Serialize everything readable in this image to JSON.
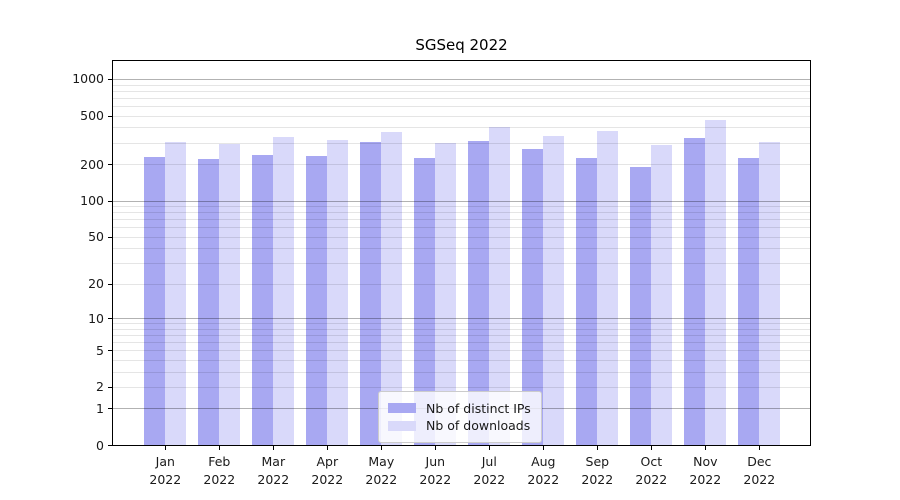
{
  "chart_data": {
    "type": "bar",
    "title": "SGSeq 2022",
    "x_tick_labels": [
      [
        "Jan",
        "2022"
      ],
      [
        "Feb",
        "2022"
      ],
      [
        "Mar",
        "2022"
      ],
      [
        "Apr",
        "2022"
      ],
      [
        "May",
        "2022"
      ],
      [
        "Jun",
        "2022"
      ],
      [
        "Jul",
        "2022"
      ],
      [
        "Aug",
        "2022"
      ],
      [
        "Sep",
        "2022"
      ],
      [
        "Oct",
        "2022"
      ],
      [
        "Nov",
        "2022"
      ],
      [
        "Dec",
        "2022"
      ]
    ],
    "series": [
      {
        "key": "distinct-ips",
        "name": "Nb of distinct IPs",
        "color": "#a8a8f2",
        "values": [
          228,
          220,
          238,
          233,
          302,
          223,
          310,
          266,
          224,
          190,
          325,
          226
        ]
      },
      {
        "key": "downloads",
        "name": "Nb of downloads",
        "color": "#d9d9fa",
        "values": [
          305,
          292,
          335,
          317,
          370,
          296,
          400,
          340,
          371,
          287,
          458,
          305
        ]
      }
    ],
    "y_scale": "log10(1+x)",
    "y_ticks": [
      0,
      1,
      2,
      5,
      10,
      20,
      50,
      100,
      200,
      500,
      1000
    ],
    "ylim": [
      0,
      1380
    ],
    "grid": {
      "major": [
        1,
        10,
        100,
        1000
      ],
      "minor": [
        2,
        3,
        4,
        5,
        6,
        7,
        8,
        9,
        20,
        30,
        40,
        50,
        60,
        70,
        80,
        90,
        200,
        300,
        400,
        500,
        600,
        700,
        800,
        900
      ]
    },
    "legend": {
      "position": "lower center"
    }
  }
}
